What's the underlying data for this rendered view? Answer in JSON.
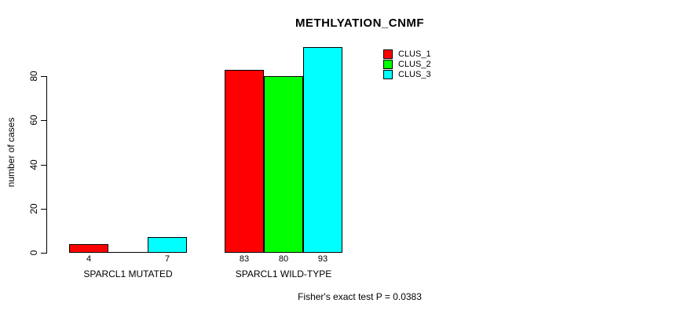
{
  "chart_data": {
    "type": "bar",
    "title": "METHLYATION_CNMF",
    "xlabel": "",
    "ylabel": "number of cases",
    "ylim": [
      0,
      93
    ],
    "y_ticks": [
      0,
      20,
      40,
      60,
      80
    ],
    "categories": [
      "SPARCL1 MUTATED",
      "SPARCL1 WILD-TYPE"
    ],
    "series": [
      {
        "name": "CLUS_1",
        "color": "#ff0000",
        "values": [
          4,
          83
        ]
      },
      {
        "name": "CLUS_2",
        "color": "#00ff00",
        "values": [
          0,
          80
        ]
      },
      {
        "name": "CLUS_3",
        "color": "#00ffff",
        "values": [
          7,
          93
        ]
      }
    ],
    "bar_value_labels": [
      [
        "4",
        "",
        "7"
      ],
      [
        "83",
        "80",
        "93"
      ]
    ],
    "legend_position": "top-right",
    "grid": false,
    "annotation": "Fisher's exact test P = 0.0383"
  },
  "colors": {
    "background": "#ffffff",
    "axis": "#000000",
    "bar_border": "#000000",
    "clus_1": "#ff0000",
    "clus_2": "#00ff00",
    "clus_3": "#00ffff"
  }
}
